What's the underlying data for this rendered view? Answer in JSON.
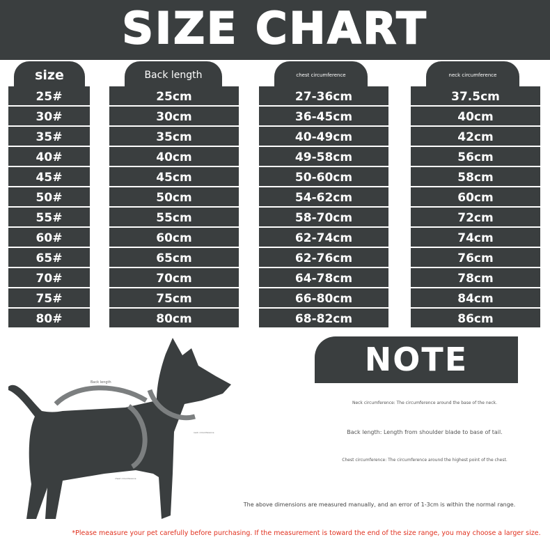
{
  "title": "SIZE CHART",
  "colors": {
    "dark": "#3a3e3f",
    "arrow": "#7c7f80",
    "warning": "#e0301e"
  },
  "table": {
    "headers": [
      "size",
      "Back length",
      "chest circumference",
      "neck circumference"
    ],
    "rows": [
      [
        "25#",
        "25cm",
        "27-36cm",
        "37.5cm"
      ],
      [
        "30#",
        "30cm",
        "36-45cm",
        "40cm"
      ],
      [
        "35#",
        "35cm",
        "40-49cm",
        "42cm"
      ],
      [
        "40#",
        "40cm",
        "49-58cm",
        "56cm"
      ],
      [
        "45#",
        "45cm",
        "50-60cm",
        "58cm"
      ],
      [
        "50#",
        "50cm",
        "54-62cm",
        "60cm"
      ],
      [
        "55#",
        "55cm",
        "58-70cm",
        "72cm"
      ],
      [
        "60#",
        "60cm",
        "62-74cm",
        "74cm"
      ],
      [
        "65#",
        "65cm",
        "62-76cm",
        "76cm"
      ],
      [
        "70#",
        "70cm",
        "64-78cm",
        "78cm"
      ],
      [
        "75#",
        "75cm",
        "66-80cm",
        "84cm"
      ],
      [
        "80#",
        "80cm",
        "68-82cm",
        "86cm"
      ]
    ]
  },
  "diagram": {
    "back_label": "Back length",
    "neck_label": "neck circumference",
    "chest_label": "chest circumference"
  },
  "note": {
    "heading": "NOTE",
    "neck": "Neck circumference: The circumference around the base of the neck.",
    "back": "Back length: Length from shoulder blade to base of tail.",
    "chest": "Chest circumference: The circumference around the highest point of the chest.",
    "error": "The above dimensions are measured manually, and an error of 1-3cm is within the normal range.",
    "warning": "*Please measure your pet carefully before purchasing. If the measurement is toward the end of the size range, you may choose a larger size."
  }
}
